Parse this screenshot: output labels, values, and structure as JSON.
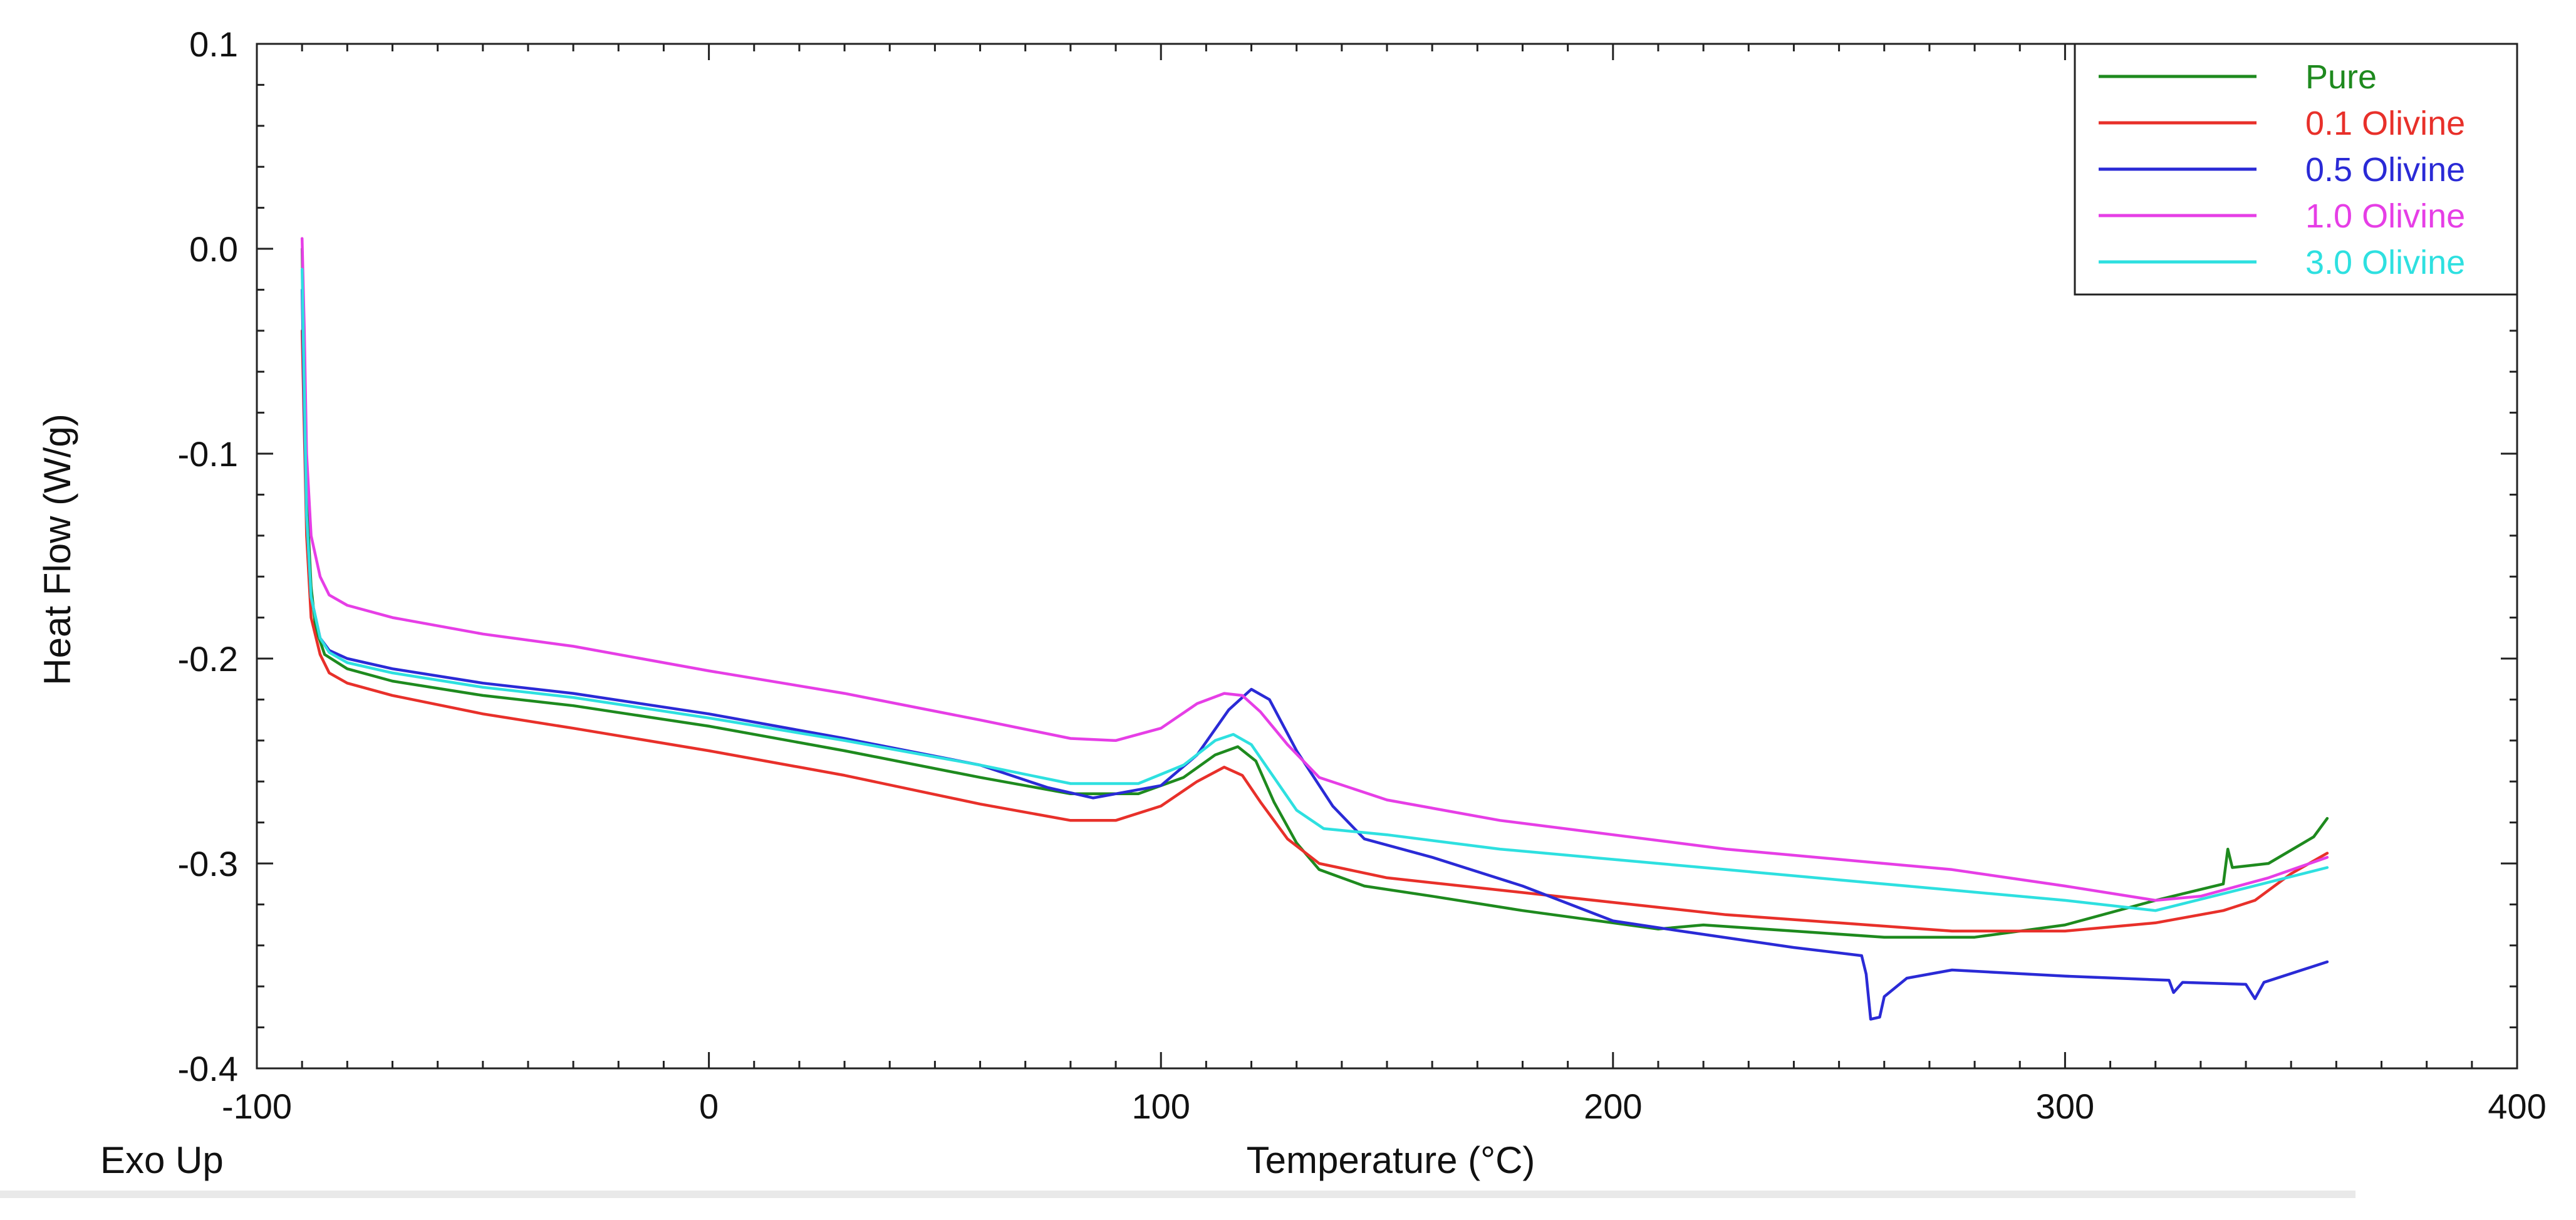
{
  "chart_data": {
    "type": "line",
    "title": "",
    "xlabel": "Temperature (°C)",
    "ylabel": "Heat Flow (W/g)",
    "corner_note": "Exo Up",
    "xlim": [
      -100,
      400
    ],
    "ylim": [
      -0.4,
      0.1
    ],
    "x_ticks": [
      -100,
      0,
      100,
      200,
      300,
      400
    ],
    "x_tick_labels": [
      "-100",
      "0",
      "100",
      "200",
      "300",
      "400"
    ],
    "y_ticks": [
      0.1,
      0.0,
      -0.1,
      -0.2,
      -0.3,
      -0.4
    ],
    "y_tick_labels": [
      "0.1",
      "0.0",
      "-0.1",
      "-0.2",
      "-0.3",
      "-0.4"
    ],
    "grid": false,
    "legend_position": "top-right",
    "series": [
      {
        "name": "Pure",
        "color": "#1e8a1e",
        "points": [
          [
            -90,
            0
          ],
          [
            -89.5,
            -0.06
          ],
          [
            -89,
            -0.12
          ],
          [
            -88,
            -0.165
          ],
          [
            -87,
            -0.185
          ],
          [
            -85,
            -0.198
          ],
          [
            -80,
            -0.205
          ],
          [
            -70,
            -0.211
          ],
          [
            -50,
            -0.218
          ],
          [
            -30,
            -0.223
          ],
          [
            0,
            -0.233
          ],
          [
            30,
            -0.245
          ],
          [
            60,
            -0.258
          ],
          [
            80,
            -0.266
          ],
          [
            95,
            -0.266
          ],
          [
            105,
            -0.258
          ],
          [
            112,
            -0.247
          ],
          [
            117,
            -0.243
          ],
          [
            121,
            -0.25
          ],
          [
            125,
            -0.27
          ],
          [
            130,
            -0.29
          ],
          [
            135,
            -0.303
          ],
          [
            145,
            -0.311
          ],
          [
            160,
            -0.316
          ],
          [
            180,
            -0.323
          ],
          [
            200,
            -0.329
          ],
          [
            210,
            -0.332
          ],
          [
            220,
            -0.33
          ],
          [
            240,
            -0.333
          ],
          [
            260,
            -0.336
          ],
          [
            280,
            -0.336
          ],
          [
            300,
            -0.33
          ],
          [
            320,
            -0.318
          ],
          [
            335,
            -0.31
          ],
          [
            336,
            -0.293
          ],
          [
            337,
            -0.302
          ],
          [
            345,
            -0.3
          ],
          [
            355,
            -0.287
          ],
          [
            358,
            -0.278
          ]
        ]
      },
      {
        "name": "0.1 Olivine",
        "color": "#e8302a",
        "points": [
          [
            -90,
            -0.04
          ],
          [
            -89.5,
            -0.09
          ],
          [
            -89,
            -0.14
          ],
          [
            -88,
            -0.18
          ],
          [
            -86,
            -0.198
          ],
          [
            -84,
            -0.207
          ],
          [
            -80,
            -0.212
          ],
          [
            -70,
            -0.218
          ],
          [
            -50,
            -0.227
          ],
          [
            -30,
            -0.234
          ],
          [
            0,
            -0.245
          ],
          [
            30,
            -0.257
          ],
          [
            60,
            -0.271
          ],
          [
            80,
            -0.279
          ],
          [
            90,
            -0.279
          ],
          [
            100,
            -0.272
          ],
          [
            108,
            -0.26
          ],
          [
            114,
            -0.253
          ],
          [
            118,
            -0.257
          ],
          [
            122,
            -0.27
          ],
          [
            128,
            -0.288
          ],
          [
            135,
            -0.3
          ],
          [
            150,
            -0.307
          ],
          [
            175,
            -0.313
          ],
          [
            200,
            -0.319
          ],
          [
            225,
            -0.325
          ],
          [
            250,
            -0.329
          ],
          [
            275,
            -0.333
          ],
          [
            300,
            -0.333
          ],
          [
            320,
            -0.329
          ],
          [
            335,
            -0.323
          ],
          [
            342,
            -0.318
          ],
          [
            350,
            -0.305
          ],
          [
            358,
            -0.295
          ]
        ]
      },
      {
        "name": "0.5 Olivine",
        "color": "#2a2ad6",
        "points": [
          [
            -90,
            -0.02
          ],
          [
            -89.5,
            -0.08
          ],
          [
            -89,
            -0.13
          ],
          [
            -88,
            -0.17
          ],
          [
            -86,
            -0.19
          ],
          [
            -84,
            -0.196
          ],
          [
            -80,
            -0.2
          ],
          [
            -70,
            -0.205
          ],
          [
            -50,
            -0.212
          ],
          [
            -30,
            -0.217
          ],
          [
            0,
            -0.227
          ],
          [
            30,
            -0.239
          ],
          [
            60,
            -0.252
          ],
          [
            75,
            -0.263
          ],
          [
            85,
            -0.268
          ],
          [
            100,
            -0.262
          ],
          [
            108,
            -0.247
          ],
          [
            115,
            -0.225
          ],
          [
            120,
            -0.215
          ],
          [
            124,
            -0.22
          ],
          [
            130,
            -0.245
          ],
          [
            138,
            -0.272
          ],
          [
            145,
            -0.288
          ],
          [
            160,
            -0.297
          ],
          [
            180,
            -0.311
          ],
          [
            200,
            -0.328
          ],
          [
            215,
            -0.333
          ],
          [
            240,
            -0.341
          ],
          [
            255,
            -0.345
          ],
          [
            256,
            -0.354
          ],
          [
            257,
            -0.376
          ],
          [
            259,
            -0.375
          ],
          [
            260,
            -0.365
          ],
          [
            265,
            -0.356
          ],
          [
            275,
            -0.352
          ],
          [
            300,
            -0.355
          ],
          [
            323,
            -0.357
          ],
          [
            324,
            -0.363
          ],
          [
            326,
            -0.358
          ],
          [
            340,
            -0.359
          ],
          [
            342,
            -0.366
          ],
          [
            344,
            -0.358
          ],
          [
            358,
            -0.348
          ]
        ]
      },
      {
        "name": "1.0 Olivine",
        "color": "#e63ee6",
        "points": [
          [
            -90,
            0.005
          ],
          [
            -89.5,
            -0.04
          ],
          [
            -89,
            -0.1
          ],
          [
            -88,
            -0.14
          ],
          [
            -86,
            -0.16
          ],
          [
            -84,
            -0.169
          ],
          [
            -80,
            -0.174
          ],
          [
            -70,
            -0.18
          ],
          [
            -50,
            -0.188
          ],
          [
            -30,
            -0.194
          ],
          [
            0,
            -0.206
          ],
          [
            30,
            -0.217
          ],
          [
            60,
            -0.23
          ],
          [
            80,
            -0.239
          ],
          [
            90,
            -0.24
          ],
          [
            100,
            -0.234
          ],
          [
            108,
            -0.222
          ],
          [
            114,
            -0.217
          ],
          [
            118,
            -0.218
          ],
          [
            122,
            -0.226
          ],
          [
            128,
            -0.242
          ],
          [
            135,
            -0.258
          ],
          [
            150,
            -0.269
          ],
          [
            175,
            -0.279
          ],
          [
            200,
            -0.286
          ],
          [
            225,
            -0.293
          ],
          [
            250,
            -0.298
          ],
          [
            275,
            -0.303
          ],
          [
            300,
            -0.311
          ],
          [
            320,
            -0.318
          ],
          [
            330,
            -0.316
          ],
          [
            345,
            -0.307
          ],
          [
            358,
            -0.297
          ]
        ]
      },
      {
        "name": "3.0 Olivine",
        "color": "#2ee0e0",
        "points": [
          [
            -90,
            -0.01
          ],
          [
            -89.5,
            -0.07
          ],
          [
            -89,
            -0.13
          ],
          [
            -88,
            -0.17
          ],
          [
            -86,
            -0.19
          ],
          [
            -84,
            -0.197
          ],
          [
            -80,
            -0.202
          ],
          [
            -70,
            -0.207
          ],
          [
            -50,
            -0.214
          ],
          [
            -30,
            -0.219
          ],
          [
            0,
            -0.229
          ],
          [
            30,
            -0.24
          ],
          [
            60,
            -0.252
          ],
          [
            80,
            -0.261
          ],
          [
            95,
            -0.261
          ],
          [
            105,
            -0.252
          ],
          [
            112,
            -0.24
          ],
          [
            116,
            -0.237
          ],
          [
            120,
            -0.242
          ],
          [
            125,
            -0.258
          ],
          [
            130,
            -0.274
          ],
          [
            136,
            -0.283
          ],
          [
            150,
            -0.286
          ],
          [
            175,
            -0.293
          ],
          [
            200,
            -0.298
          ],
          [
            225,
            -0.303
          ],
          [
            250,
            -0.308
          ],
          [
            260,
            -0.31
          ],
          [
            275,
            -0.313
          ],
          [
            300,
            -0.318
          ],
          [
            320,
            -0.323
          ],
          [
            340,
            -0.312
          ],
          [
            358,
            -0.302
          ]
        ]
      }
    ]
  }
}
